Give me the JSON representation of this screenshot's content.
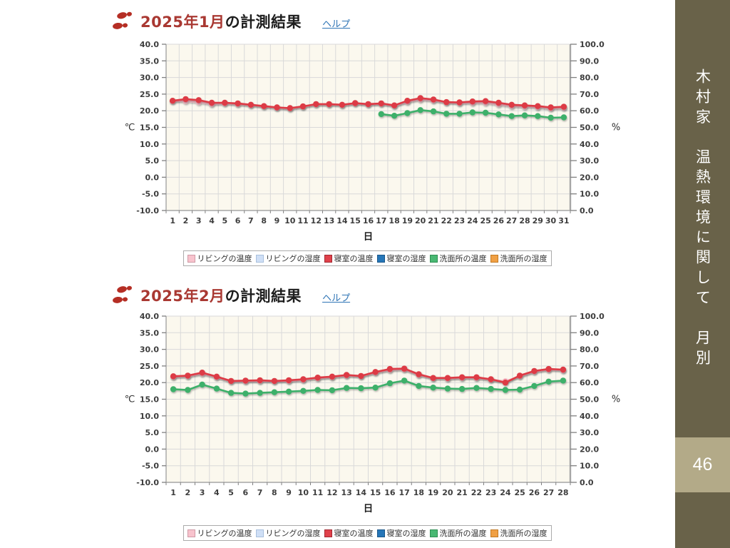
{
  "slide": {
    "sidebar_title": "木村家　温熱環境に関して　月別",
    "page_number": "46",
    "colors": {
      "sidebar_bg": "#696249",
      "page_band_bg": "#b3aa88",
      "title_accent": "#a93832",
      "help_link": "#2e74b5",
      "plot_background": "#fbf8ee",
      "grid": "#d9d9d9"
    }
  },
  "charts": [
    {
      "title_month": "2025年1月",
      "title_rest": "の計測結果",
      "help_label": "ヘルプ"
    },
    {
      "title_month": "2025年2月",
      "title_rest": "の計測結果",
      "help_label": "ヘルプ"
    }
  ],
  "legend": {
    "items": [
      {
        "label": "リビングの温度",
        "fill": "#f8c3cd",
        "border": "#cf9aa6"
      },
      {
        "label": "リビングの湿度",
        "fill": "#cfdff6",
        "border": "#a9c0dd"
      },
      {
        "label": "寝室の温度",
        "fill": "#e0414b",
        "border": "#a22730"
      },
      {
        "label": "寝室の湿度",
        "fill": "#2676b8",
        "border": "#1a578a"
      },
      {
        "label": "洗面所の温度",
        "fill": "#49b873",
        "border": "#2f8f53"
      },
      {
        "label": "洗面所の湿度",
        "fill": "#f0a044",
        "border": "#c27a23"
      }
    ]
  },
  "chart_data": [
    {
      "type": "line",
      "title": "2025年1月の計測結果",
      "xlabel": "日",
      "ylabel": "℃",
      "y2label": "%",
      "ylim": [
        -10,
        40
      ],
      "y2lim": [
        0,
        100
      ],
      "grid": true,
      "legend_position": "bottom",
      "x": [
        1,
        2,
        3,
        4,
        5,
        6,
        7,
        8,
        9,
        10,
        11,
        12,
        13,
        14,
        15,
        16,
        17,
        18,
        19,
        20,
        21,
        22,
        23,
        24,
        25,
        26,
        27,
        28,
        29,
        30,
        31
      ],
      "series": [
        {
          "name": "リビングの温度",
          "color": "#f4b6c2",
          "z": 1,
          "values": [
            22.9,
            22.9,
            22.6,
            22.0,
            22.2,
            22.0,
            21.7,
            21.3,
            20.9,
            20.7,
            21.2,
            21.9,
            21.9,
            21.7,
            22.2,
            21.9,
            22.1,
            21.5,
            22.7,
            23.4,
            23.1,
            22.5,
            22.3,
            22.4,
            22.4,
            21.9,
            21.4,
            21.2,
            21.1,
            20.7,
            20.9
          ]
        },
        {
          "name": "リビングの湿度",
          "color": "#cfdff6",
          "z": 0,
          "values": []
        },
        {
          "name": "寝室の温度",
          "color": "#dd3a45",
          "z": 3,
          "values": [
            23.0,
            23.5,
            23.2,
            22.4,
            22.4,
            22.2,
            21.8,
            21.4,
            21.0,
            20.8,
            21.3,
            22.0,
            22.0,
            21.8,
            22.3,
            22.0,
            22.2,
            21.6,
            23.0,
            23.8,
            23.4,
            22.6,
            22.5,
            22.8,
            22.9,
            22.4,
            21.8,
            21.6,
            21.4,
            21.0,
            21.2
          ]
        },
        {
          "name": "寝室の湿度",
          "color": "#2676b8",
          "z": 0,
          "values": []
        },
        {
          "name": "洗面所の温度",
          "color": "#3eb06a",
          "z": 2,
          "values": [
            null,
            null,
            null,
            null,
            null,
            null,
            null,
            null,
            null,
            null,
            null,
            null,
            null,
            null,
            null,
            null,
            19.0,
            18.5,
            19.3,
            20.2,
            19.8,
            19.1,
            19.1,
            19.5,
            19.4,
            18.9,
            18.4,
            18.6,
            18.4,
            17.9,
            18.0
          ]
        },
        {
          "name": "洗面所の湿度",
          "color": "#f0a044",
          "z": 0,
          "values": []
        }
      ]
    },
    {
      "type": "line",
      "title": "2025年2月の計測結果",
      "xlabel": "日",
      "ylabel": "℃",
      "y2label": "%",
      "ylim": [
        -10,
        40
      ],
      "y2lim": [
        0,
        100
      ],
      "grid": true,
      "legend_position": "bottom",
      "x": [
        1,
        2,
        3,
        4,
        5,
        6,
        7,
        8,
        9,
        10,
        11,
        12,
        13,
        14,
        15,
        16,
        17,
        18,
        19,
        20,
        21,
        22,
        23,
        24,
        25,
        26,
        27,
        28
      ],
      "series": [
        {
          "name": "リビングの温度",
          "color": "#f4b6c2",
          "z": 1,
          "values": [
            21.7,
            21.9,
            22.7,
            21.6,
            20.4,
            20.4,
            20.5,
            20.4,
            20.5,
            20.8,
            21.3,
            21.6,
            22.1,
            21.9,
            23.0,
            23.8,
            24.0,
            22.3,
            21.3,
            21.2,
            21.4,
            21.4,
            20.9,
            20.4,
            21.9,
            23.3,
            23.9,
            23.7
          ]
        },
        {
          "name": "リビングの湿度",
          "color": "#cfdff6",
          "z": 0,
          "values": []
        },
        {
          "name": "寝室の温度",
          "color": "#dd3a45",
          "z": 3,
          "values": [
            21.9,
            22.1,
            23.0,
            21.8,
            20.5,
            20.6,
            20.7,
            20.5,
            20.7,
            21.0,
            21.5,
            21.8,
            22.3,
            22.0,
            23.2,
            24.1,
            24.2,
            22.5,
            21.4,
            21.4,
            21.6,
            21.6,
            21.0,
            20.0,
            22.1,
            23.5,
            24.1,
            23.9
          ]
        },
        {
          "name": "寝室の湿度",
          "color": "#2676b8",
          "z": 0,
          "values": []
        },
        {
          "name": "洗面所の温度",
          "color": "#3eb06a",
          "z": 2,
          "values": [
            18.0,
            17.8,
            19.4,
            18.2,
            16.9,
            16.7,
            16.9,
            17.1,
            17.3,
            17.5,
            17.8,
            17.7,
            18.4,
            18.3,
            18.5,
            19.8,
            20.6,
            19.0,
            18.5,
            18.2,
            18.1,
            18.4,
            18.1,
            17.8,
            17.9,
            19.0,
            20.3,
            20.6
          ]
        },
        {
          "name": "洗面所の湿度",
          "color": "#f0a044",
          "z": 0,
          "values": []
        }
      ]
    }
  ]
}
